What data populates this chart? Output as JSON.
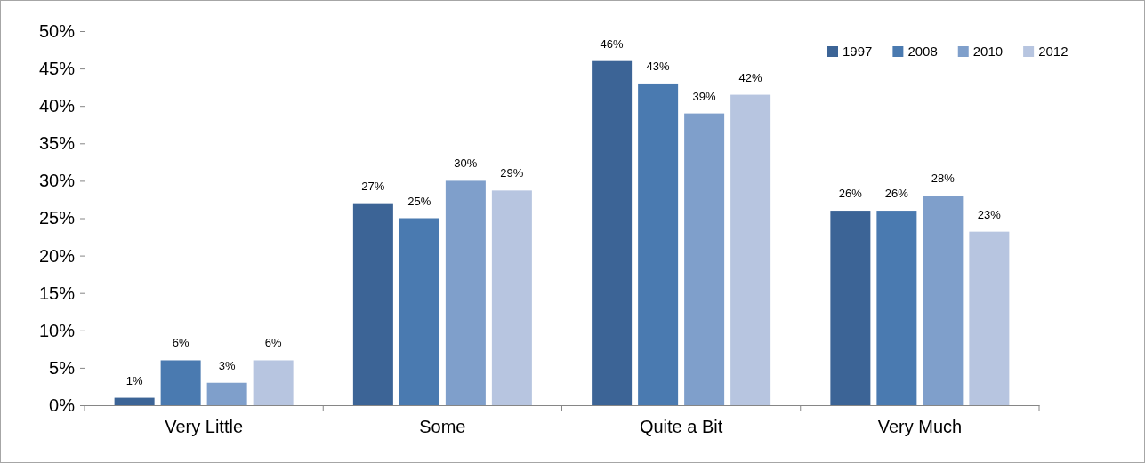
{
  "chart_data": {
    "type": "bar",
    "categories": [
      "Very Little",
      "Some",
      "Quite a Bit",
      "Very Much"
    ],
    "series": [
      {
        "name": "1997",
        "color": "#3c6496",
        "values": [
          1,
          27,
          46,
          26
        ],
        "value_labels": [
          "1%",
          "27%",
          "46%",
          "26%"
        ]
      },
      {
        "name": "2008",
        "color": "#4a7ab0",
        "values": [
          6,
          25,
          43,
          26
        ],
        "value_labels": [
          "6%",
          "25%",
          "43%",
          "26%"
        ]
      },
      {
        "name": "2010",
        "color": "#7f9fcb",
        "values": [
          3,
          30,
          39,
          28
        ],
        "value_labels": [
          "3%",
          "30%",
          "39%",
          "28%"
        ]
      },
      {
        "name": "2012",
        "color": "#b7c5e0",
        "values": [
          6,
          28.7,
          41.5,
          23.2
        ],
        "value_labels": [
          "6%",
          "29%",
          "42%",
          "23%"
        ]
      }
    ],
    "ylim": [
      0,
      50
    ],
    "yticks": [
      {
        "value": 0,
        "label": "0%"
      },
      {
        "value": 5,
        "label": "5%"
      },
      {
        "value": 10,
        "label": "10%"
      },
      {
        "value": 15,
        "label": "15%"
      },
      {
        "value": 20,
        "label": "20%"
      },
      {
        "value": 25,
        "label": "25%"
      },
      {
        "value": 30,
        "label": "30%"
      },
      {
        "value": 35,
        "label": "35%"
      },
      {
        "value": 40,
        "label": "40%"
      },
      {
        "value": 45,
        "label": "45%"
      },
      {
        "value": 50,
        "label": "50%"
      }
    ],
    "grid": false,
    "legend": "top right"
  }
}
